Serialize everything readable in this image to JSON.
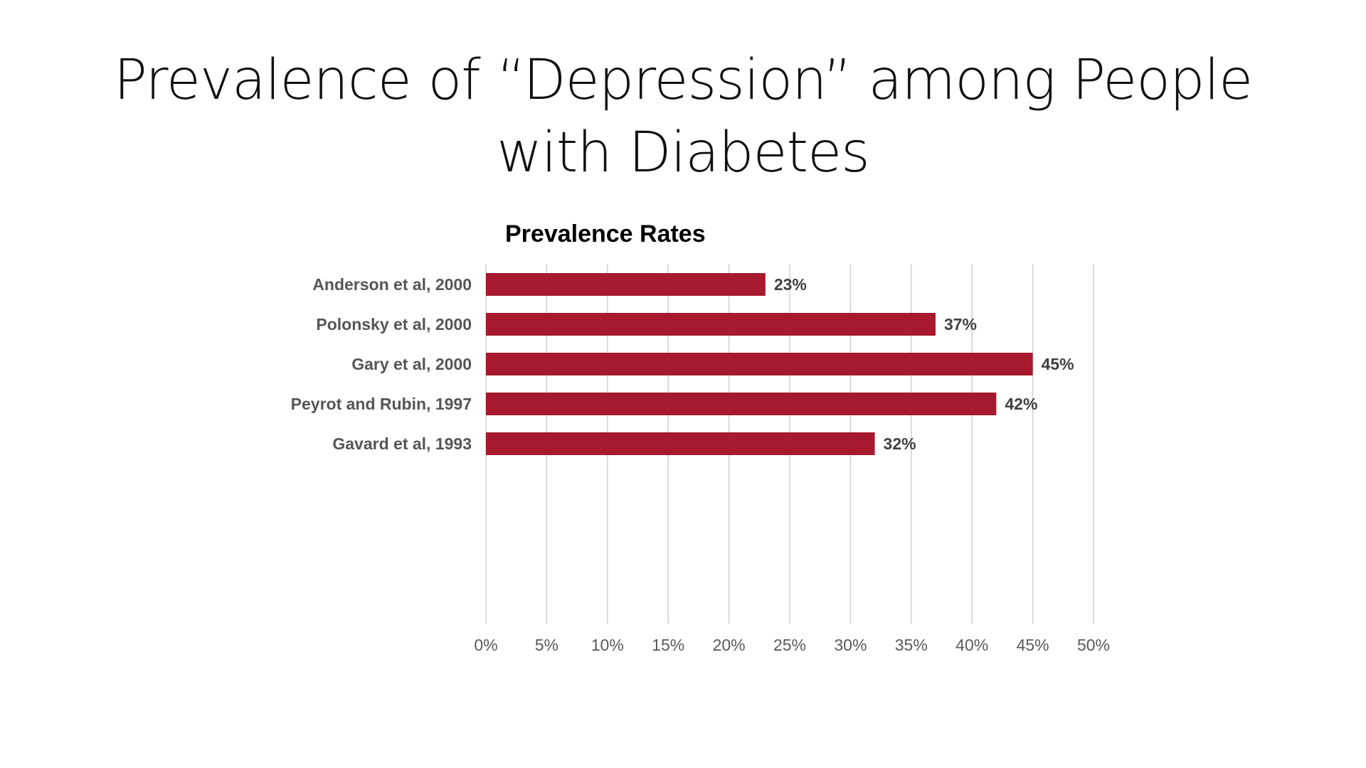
{
  "slide": {
    "title_line1": "Prevalence of “Depression” among People",
    "title_line2": "with Diabetes"
  },
  "chart_data": {
    "type": "bar",
    "orientation": "horizontal",
    "title": "Prevalence Rates",
    "categories": [
      "Anderson et al, 2000",
      "Polonsky et al, 2000",
      "Gary et al, 2000",
      "Peyrot and Rubin, 1997",
      "Gavard et al, 1993"
    ],
    "values": [
      23,
      37,
      45,
      42,
      32
    ],
    "value_unit": "%",
    "data_labels": [
      "23%",
      "37%",
      "45%",
      "42%",
      "32%"
    ],
    "xlim": [
      0,
      50
    ],
    "x_ticks": [
      "0%",
      "5%",
      "10%",
      "15%",
      "20%",
      "25%",
      "30%",
      "35%",
      "40%",
      "45%",
      "50%"
    ],
    "grid": true,
    "bar_color": "#a6192e",
    "legend": "none"
  }
}
